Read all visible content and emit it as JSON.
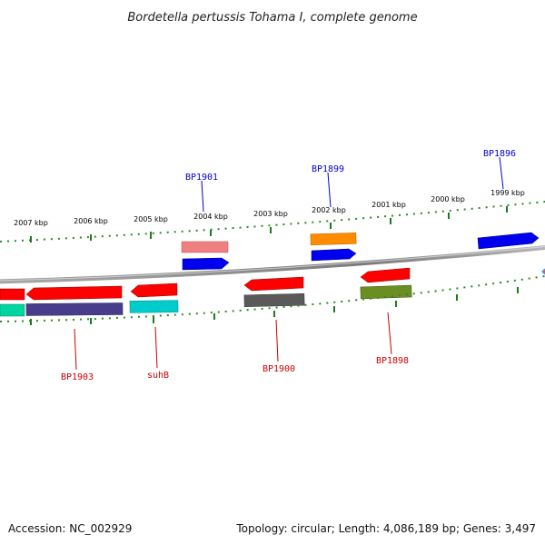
{
  "title": "Bordetella pertussis Tohama I, complete genome",
  "footer": {
    "accession": "Accession: NC_002929",
    "summary": "Topology: circular; Length: 4,086,189 bp; Genes: 3,497"
  },
  "scale": {
    "unit": "kbp",
    "ticks": [
      {
        "label": "2007 kbp"
      },
      {
        "label": "2006 kbp"
      },
      {
        "label": "2005 kbp"
      },
      {
        "label": "2004 kbp"
      },
      {
        "label": "2003 kbp"
      },
      {
        "label": "2002 kbp"
      },
      {
        "label": "2001 kbp"
      },
      {
        "label": "2000 kbp"
      },
      {
        "label": "1999 kbp"
      }
    ]
  },
  "genes": {
    "forward_strand": [
      {
        "name": "BP1901",
        "color": "#0000ee"
      },
      {
        "name": "BP1899",
        "color": "#0000ee"
      },
      {
        "name": "BP1896",
        "color": "#0000ee"
      }
    ],
    "reverse_strand": [
      {
        "name": "BP1903",
        "color": "#ff0000"
      },
      {
        "name": "suhB",
        "color": "#ff0000"
      },
      {
        "name": "BP1900",
        "color": "#ff0000"
      },
      {
        "name": "BP1898",
        "color": "#ff0000"
      }
    ]
  },
  "colors": {
    "backbone": "#888888",
    "tick_marks": "#008000",
    "forward_label": "#0000cc",
    "reverse_label": "#cc0000",
    "feature_palette": [
      "#ff0000",
      "#0000ee",
      "#f08080",
      "#ff8c00",
      "#00cc99",
      "#483d8b",
      "#00cccc",
      "#555555",
      "#6b8e23"
    ]
  }
}
